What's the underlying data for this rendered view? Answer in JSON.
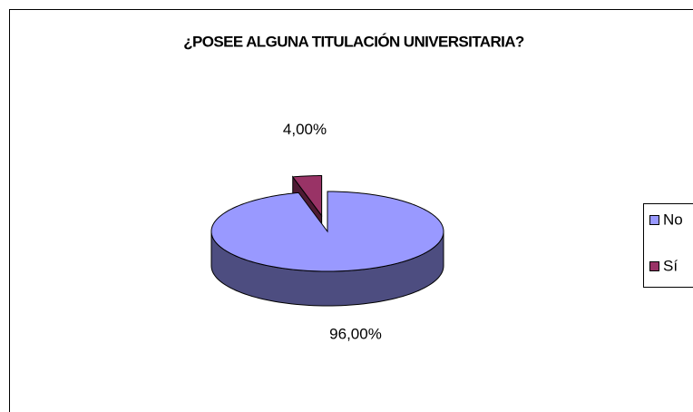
{
  "chart_data": {
    "type": "pie",
    "title": "¿POSEE ALGUNA TITULACIÓN UNIVERSITARIA?",
    "categories": [
      "No",
      "Sí"
    ],
    "values": [
      96,
      4
    ],
    "value_labels": [
      "96,00%",
      "4,00%"
    ],
    "colors": [
      "#9999ff",
      "#993366"
    ],
    "legend": "right"
  }
}
